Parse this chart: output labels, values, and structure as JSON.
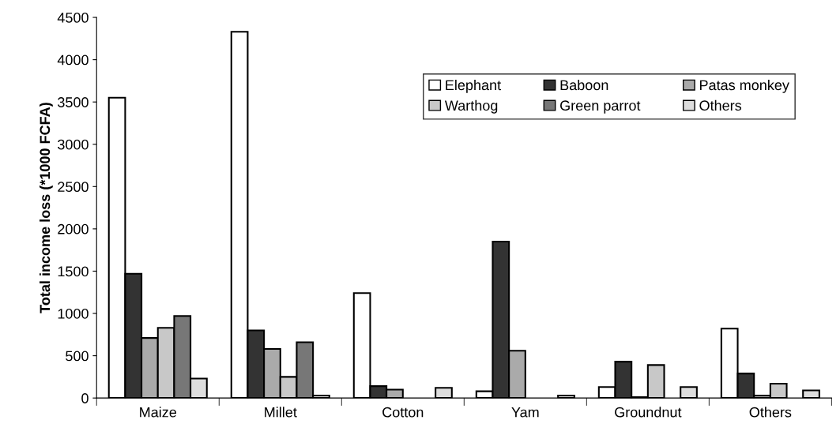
{
  "chart_data": {
    "type": "bar",
    "ylabel": "Total income loss (*1000 FCFA)",
    "categories": [
      "Maize",
      "Millet",
      "Cotton",
      "Yam",
      "Groundnut",
      "Others"
    ],
    "series": [
      {
        "name": "Elephant",
        "color": "#ffffff",
        "values": [
          3550,
          4330,
          1240,
          80,
          130,
          820
        ]
      },
      {
        "name": "Baboon",
        "color": "#333333",
        "values": [
          1470,
          800,
          140,
          1850,
          430,
          290
        ]
      },
      {
        "name": "Patas monkey",
        "color": "#aaaaaa",
        "values": [
          710,
          580,
          100,
          560,
          10,
          30
        ]
      },
      {
        "name": "Warthog",
        "color": "#c8c8c8",
        "values": [
          830,
          250,
          null,
          null,
          390,
          170
        ]
      },
      {
        "name": "Green parrot",
        "color": "#777777",
        "values": [
          970,
          660,
          null,
          null,
          null,
          null
        ]
      },
      {
        "name": "Others",
        "color": "#dddddd",
        "values": [
          230,
          30,
          120,
          30,
          130,
          90
        ]
      }
    ],
    "ylim": [
      0,
      4500
    ],
    "yticks": [
      0,
      500,
      1000,
      1500,
      2000,
      2500,
      3000,
      3500,
      4000,
      4500
    ],
    "grid": false,
    "legend": "top right"
  }
}
